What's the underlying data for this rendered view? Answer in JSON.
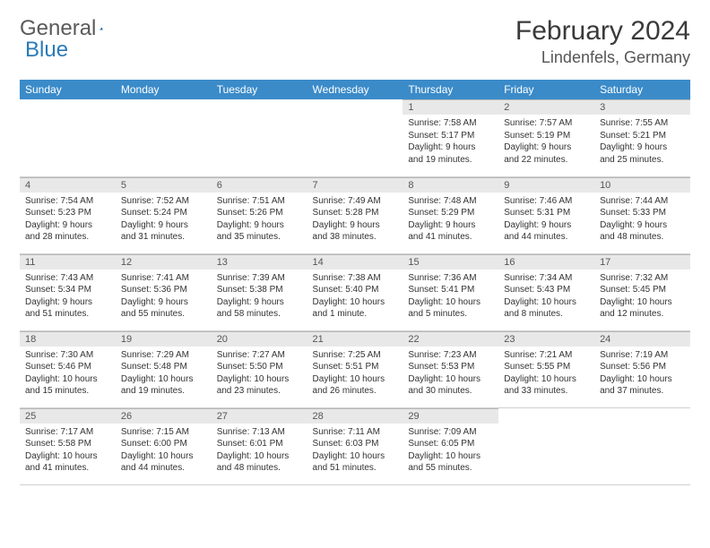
{
  "logo": {
    "part1": "General",
    "part2": "Blue"
  },
  "title": "February 2024",
  "location": "Lindenfels, Germany",
  "colors": {
    "header_bg": "#3b8bc9",
    "header_text": "#ffffff",
    "daynum_bg": "#e8e8e8",
    "border": "#d0d0d0",
    "text": "#333333",
    "logo_gray": "#5a5a5a",
    "logo_blue": "#2a7ab8"
  },
  "weekdays": [
    "Sunday",
    "Monday",
    "Tuesday",
    "Wednesday",
    "Thursday",
    "Friday",
    "Saturday"
  ],
  "weeks": [
    [
      null,
      null,
      null,
      null,
      {
        "n": "1",
        "sr": "Sunrise: 7:58 AM",
        "ss": "Sunset: 5:17 PM",
        "d1": "Daylight: 9 hours",
        "d2": "and 19 minutes."
      },
      {
        "n": "2",
        "sr": "Sunrise: 7:57 AM",
        "ss": "Sunset: 5:19 PM",
        "d1": "Daylight: 9 hours",
        "d2": "and 22 minutes."
      },
      {
        "n": "3",
        "sr": "Sunrise: 7:55 AM",
        "ss": "Sunset: 5:21 PM",
        "d1": "Daylight: 9 hours",
        "d2": "and 25 minutes."
      }
    ],
    [
      {
        "n": "4",
        "sr": "Sunrise: 7:54 AM",
        "ss": "Sunset: 5:23 PM",
        "d1": "Daylight: 9 hours",
        "d2": "and 28 minutes."
      },
      {
        "n": "5",
        "sr": "Sunrise: 7:52 AM",
        "ss": "Sunset: 5:24 PM",
        "d1": "Daylight: 9 hours",
        "d2": "and 31 minutes."
      },
      {
        "n": "6",
        "sr": "Sunrise: 7:51 AM",
        "ss": "Sunset: 5:26 PM",
        "d1": "Daylight: 9 hours",
        "d2": "and 35 minutes."
      },
      {
        "n": "7",
        "sr": "Sunrise: 7:49 AM",
        "ss": "Sunset: 5:28 PM",
        "d1": "Daylight: 9 hours",
        "d2": "and 38 minutes."
      },
      {
        "n": "8",
        "sr": "Sunrise: 7:48 AM",
        "ss": "Sunset: 5:29 PM",
        "d1": "Daylight: 9 hours",
        "d2": "and 41 minutes."
      },
      {
        "n": "9",
        "sr": "Sunrise: 7:46 AM",
        "ss": "Sunset: 5:31 PM",
        "d1": "Daylight: 9 hours",
        "d2": "and 44 minutes."
      },
      {
        "n": "10",
        "sr": "Sunrise: 7:44 AM",
        "ss": "Sunset: 5:33 PM",
        "d1": "Daylight: 9 hours",
        "d2": "and 48 minutes."
      }
    ],
    [
      {
        "n": "11",
        "sr": "Sunrise: 7:43 AM",
        "ss": "Sunset: 5:34 PM",
        "d1": "Daylight: 9 hours",
        "d2": "and 51 minutes."
      },
      {
        "n": "12",
        "sr": "Sunrise: 7:41 AM",
        "ss": "Sunset: 5:36 PM",
        "d1": "Daylight: 9 hours",
        "d2": "and 55 minutes."
      },
      {
        "n": "13",
        "sr": "Sunrise: 7:39 AM",
        "ss": "Sunset: 5:38 PM",
        "d1": "Daylight: 9 hours",
        "d2": "and 58 minutes."
      },
      {
        "n": "14",
        "sr": "Sunrise: 7:38 AM",
        "ss": "Sunset: 5:40 PM",
        "d1": "Daylight: 10 hours",
        "d2": "and 1 minute."
      },
      {
        "n": "15",
        "sr": "Sunrise: 7:36 AM",
        "ss": "Sunset: 5:41 PM",
        "d1": "Daylight: 10 hours",
        "d2": "and 5 minutes."
      },
      {
        "n": "16",
        "sr": "Sunrise: 7:34 AM",
        "ss": "Sunset: 5:43 PM",
        "d1": "Daylight: 10 hours",
        "d2": "and 8 minutes."
      },
      {
        "n": "17",
        "sr": "Sunrise: 7:32 AM",
        "ss": "Sunset: 5:45 PM",
        "d1": "Daylight: 10 hours",
        "d2": "and 12 minutes."
      }
    ],
    [
      {
        "n": "18",
        "sr": "Sunrise: 7:30 AM",
        "ss": "Sunset: 5:46 PM",
        "d1": "Daylight: 10 hours",
        "d2": "and 15 minutes."
      },
      {
        "n": "19",
        "sr": "Sunrise: 7:29 AM",
        "ss": "Sunset: 5:48 PM",
        "d1": "Daylight: 10 hours",
        "d2": "and 19 minutes."
      },
      {
        "n": "20",
        "sr": "Sunrise: 7:27 AM",
        "ss": "Sunset: 5:50 PM",
        "d1": "Daylight: 10 hours",
        "d2": "and 23 minutes."
      },
      {
        "n": "21",
        "sr": "Sunrise: 7:25 AM",
        "ss": "Sunset: 5:51 PM",
        "d1": "Daylight: 10 hours",
        "d2": "and 26 minutes."
      },
      {
        "n": "22",
        "sr": "Sunrise: 7:23 AM",
        "ss": "Sunset: 5:53 PM",
        "d1": "Daylight: 10 hours",
        "d2": "and 30 minutes."
      },
      {
        "n": "23",
        "sr": "Sunrise: 7:21 AM",
        "ss": "Sunset: 5:55 PM",
        "d1": "Daylight: 10 hours",
        "d2": "and 33 minutes."
      },
      {
        "n": "24",
        "sr": "Sunrise: 7:19 AM",
        "ss": "Sunset: 5:56 PM",
        "d1": "Daylight: 10 hours",
        "d2": "and 37 minutes."
      }
    ],
    [
      {
        "n": "25",
        "sr": "Sunrise: 7:17 AM",
        "ss": "Sunset: 5:58 PM",
        "d1": "Daylight: 10 hours",
        "d2": "and 41 minutes."
      },
      {
        "n": "26",
        "sr": "Sunrise: 7:15 AM",
        "ss": "Sunset: 6:00 PM",
        "d1": "Daylight: 10 hours",
        "d2": "and 44 minutes."
      },
      {
        "n": "27",
        "sr": "Sunrise: 7:13 AM",
        "ss": "Sunset: 6:01 PM",
        "d1": "Daylight: 10 hours",
        "d2": "and 48 minutes."
      },
      {
        "n": "28",
        "sr": "Sunrise: 7:11 AM",
        "ss": "Sunset: 6:03 PM",
        "d1": "Daylight: 10 hours",
        "d2": "and 51 minutes."
      },
      {
        "n": "29",
        "sr": "Sunrise: 7:09 AM",
        "ss": "Sunset: 6:05 PM",
        "d1": "Daylight: 10 hours",
        "d2": "and 55 minutes."
      },
      null,
      null
    ]
  ]
}
